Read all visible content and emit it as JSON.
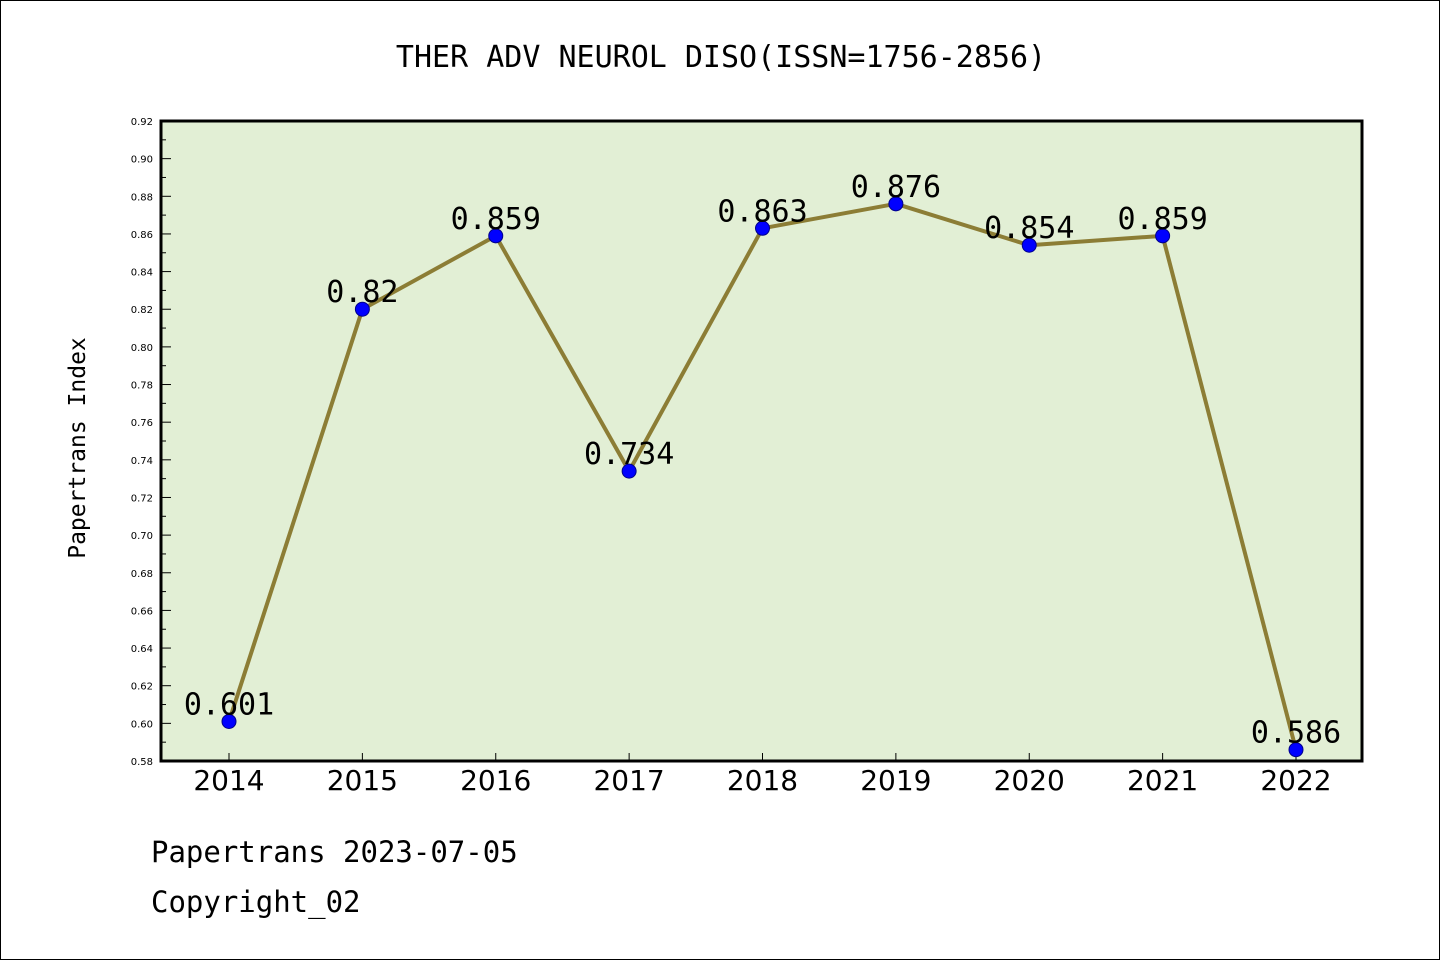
{
  "chart_data": {
    "type": "line",
    "title": "THER ADV NEUROL DISO(ISSN=1756-2856)",
    "xlabel": "",
    "ylabel": "Papertrans Index",
    "categories": [
      "2014",
      "2015",
      "2016",
      "2017",
      "2018",
      "2019",
      "2020",
      "2021",
      "2022"
    ],
    "series": [
      {
        "values": [
          0.601,
          0.82,
          0.859,
          0.734,
          0.863,
          0.876,
          0.854,
          0.859,
          0.586
        ],
        "labels": [
          "0.601",
          "0.82",
          "0.859",
          "0.734",
          "0.863",
          "0.876",
          "0.854",
          "0.859",
          "0.586"
        ]
      }
    ],
    "ylim": [
      0.58,
      0.92
    ],
    "yticks": [
      "0.58",
      "0.60",
      "0.62",
      "0.64",
      "0.66",
      "0.68",
      "0.70",
      "0.72",
      "0.74",
      "0.76",
      "0.78",
      "0.80",
      "0.82",
      "0.84",
      "0.86",
      "0.88",
      "0.90",
      "0.92"
    ],
    "grid": false,
    "legend": "none",
    "colors": {
      "plot_background": "#e2efd5",
      "line": "#8c7d35",
      "marker": "#0000ff"
    }
  },
  "footer": {
    "line1": "Papertrans 2023-07-05",
    "line2": "Copyright_02"
  }
}
